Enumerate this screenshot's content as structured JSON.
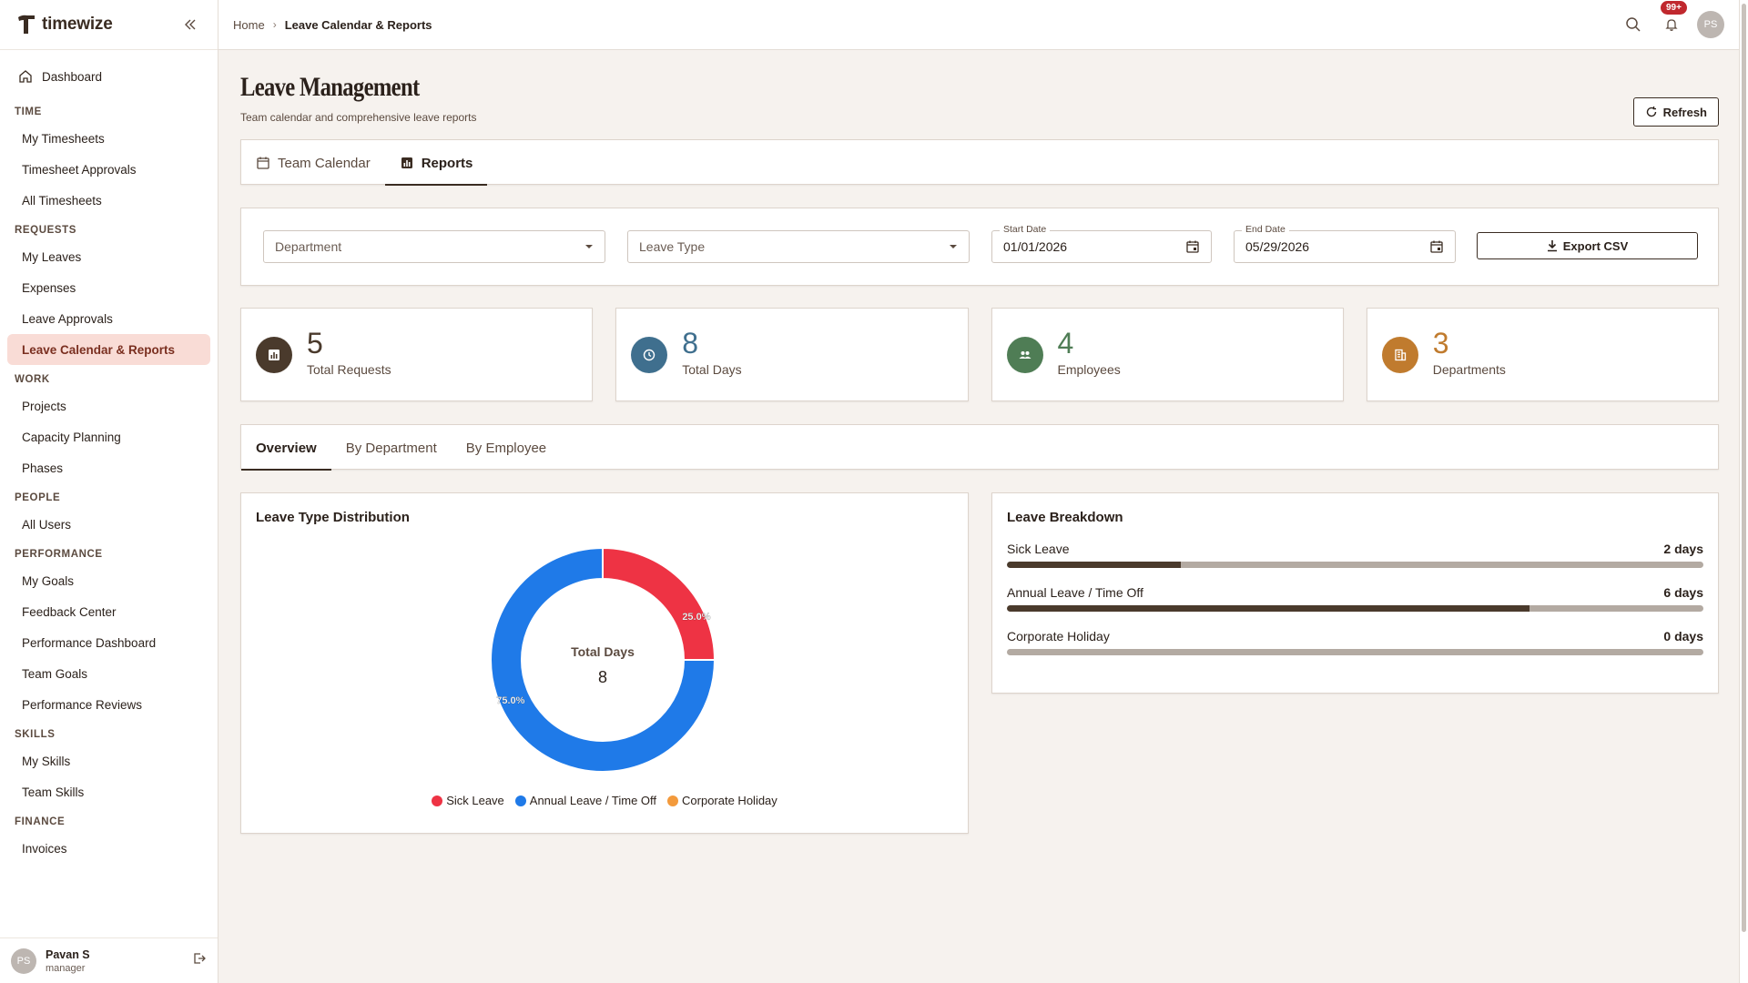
{
  "app": {
    "name": "timewize"
  },
  "sidebar": {
    "dashboard": "Dashboard",
    "sections": [
      {
        "title": "TIME",
        "items": [
          "My Timesheets",
          "Timesheet Approvals",
          "All Timesheets"
        ]
      },
      {
        "title": "REQUESTS",
        "items": [
          "My Leaves",
          "Expenses",
          "Leave Approvals",
          "Leave Calendar & Reports"
        ]
      },
      {
        "title": "WORK",
        "items": [
          "Projects",
          "Capacity Planning",
          "Phases"
        ]
      },
      {
        "title": "PEOPLE",
        "items": [
          "All Users"
        ]
      },
      {
        "title": "PERFORMANCE",
        "items": [
          "My Goals",
          "Feedback Center",
          "Performance Dashboard",
          "Team Goals",
          "Performance Reviews"
        ]
      },
      {
        "title": "SKILLS",
        "items": [
          "My Skills",
          "Team Skills"
        ]
      },
      {
        "title": "FINANCE",
        "items": [
          "Invoices"
        ]
      }
    ],
    "active_item": "Leave Calendar & Reports",
    "user": {
      "initials": "PS",
      "name": "Pavan S",
      "role": "manager"
    }
  },
  "topbar": {
    "breadcrumb": [
      "Home",
      "Leave Calendar & Reports"
    ],
    "notifications_badge": "99+",
    "avatar_initials": "PS"
  },
  "page": {
    "title": "Leave Management",
    "subtitle": "Team calendar and comprehensive leave reports",
    "refresh_label": "Refresh"
  },
  "tabs": [
    {
      "label": "Team Calendar",
      "icon": "calendar-icon",
      "active": false
    },
    {
      "label": "Reports",
      "icon": "bar-chart-icon",
      "active": true
    }
  ],
  "filters": {
    "department_placeholder": "Department",
    "leave_type_placeholder": "Leave Type",
    "start_date_label": "Start Date",
    "start_date_value": "01/01/2026",
    "end_date_label": "End Date",
    "end_date_value": "05/29/2026",
    "export_label": "Export CSV"
  },
  "stats": [
    {
      "value": "5",
      "label": "Total Requests",
      "color": "#4a3a2c",
      "icon": "bar-chart-icon"
    },
    {
      "value": "8",
      "label": "Total Days",
      "color": "#3f6f8e",
      "icon": "clock-icon"
    },
    {
      "value": "4",
      "label": "Employees",
      "color": "#4f7d55",
      "icon": "people-icon"
    },
    {
      "value": "3",
      "label": "Departments",
      "color": "#c07b2e",
      "icon": "building-icon"
    }
  ],
  "subtabs": [
    {
      "label": "Overview",
      "active": true
    },
    {
      "label": "By Department",
      "active": false
    },
    {
      "label": "By Employee",
      "active": false
    }
  ],
  "distribution": {
    "title": "Leave Type Distribution",
    "center_label": "Total Days",
    "center_value": "8"
  },
  "chart_data": {
    "type": "pie",
    "title": "Leave Type Distribution",
    "categories": [
      "Sick Leave",
      "Annual Leave / Time Off",
      "Corporate Holiday"
    ],
    "values": [
      2,
      6,
      0
    ],
    "percent_labels": [
      "25.0%",
      "75.0%",
      ""
    ],
    "colors": [
      "#ee3344",
      "#1f7ae8",
      "#f39a3c"
    ],
    "legend_position": "bottom"
  },
  "breakdown": {
    "title": "Leave Breakdown",
    "max_days": 8,
    "rows": [
      {
        "label": "Sick Leave",
        "value_text": "2 days",
        "days": 2
      },
      {
        "label": "Annual Leave / Time Off",
        "value_text": "6 days",
        "days": 6
      },
      {
        "label": "Corporate Holiday",
        "value_text": "0 days",
        "days": 0
      }
    ]
  }
}
